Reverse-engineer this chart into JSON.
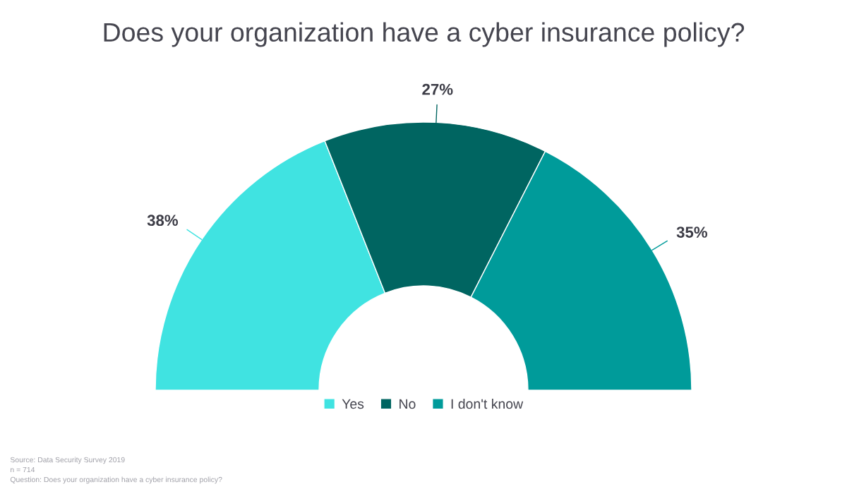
{
  "chart_data": {
    "type": "donut",
    "title": "Does your organization have a cyber insurance policy?",
    "categories": [
      "Yes",
      "No",
      "I don't know"
    ],
    "values": [
      38,
      27,
      35
    ],
    "value_labels": [
      "38%",
      "27%",
      "35%"
    ],
    "colors": [
      "#40e3e1",
      "#006561",
      "#009b9a"
    ],
    "legend": "bottom",
    "annotations": [
      "Source: Data Security Survey 2019",
      "n = 714",
      "Question: Does your organization have a cyber insurance policy?"
    ]
  }
}
